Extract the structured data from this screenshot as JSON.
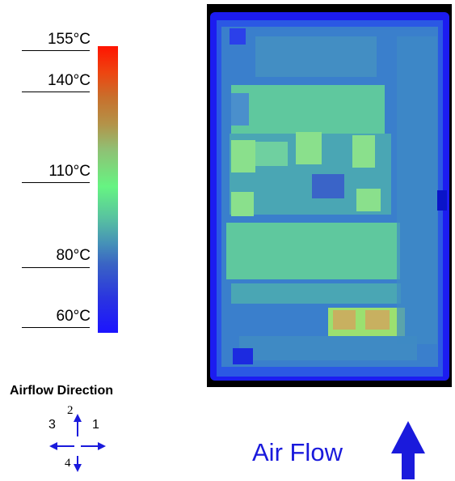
{
  "scale": {
    "labels": [
      "155°C",
      "140°C",
      "110°C",
      "80°C",
      "60°C"
    ],
    "gradient_colors": [
      "#ff1400",
      "#c8702c",
      "#66f482",
      "#3a64c4",
      "#1c14ff"
    ]
  },
  "airflow_legend": {
    "title": "Airflow Direction",
    "directions": [
      "1",
      "2",
      "3",
      "4"
    ],
    "arrow_color": "#1a1adc"
  },
  "air_flow": {
    "label": "Air Flow",
    "arrow_color": "#1a1adc"
  },
  "thermal_image": {
    "colors": {
      "background": "#000000",
      "cold": "#1c1cf0",
      "cool": "#2f6edc",
      "mid": "#4a9cb0",
      "warm": "#6fd88c",
      "hot": "#9be070",
      "hottest": "#c8b060"
    }
  }
}
